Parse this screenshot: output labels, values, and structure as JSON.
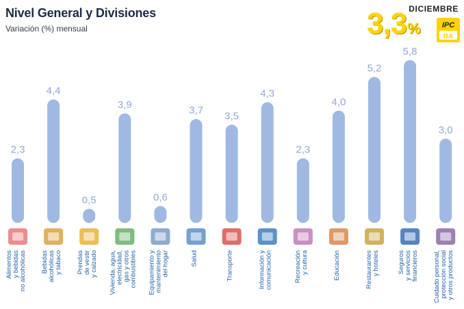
{
  "header": {
    "title": "Nivel General y Divisiones",
    "subtitle": "Variación (%) mensual",
    "month": "DICIEMBRE",
    "headline_value": "3,3",
    "headline_unit": "%",
    "logo_text_top": "IPC",
    "logo_text_bottom": "BA"
  },
  "colors": {
    "bar": "#9fb9e2",
    "value_label": "#8fa9d4",
    "category_label": "#1f5fa8",
    "headline": "#ffd400",
    "title": "#1d2b45"
  },
  "chart_data": {
    "type": "bar",
    "title": "Nivel General y Divisiones",
    "subtitle": "Variación (%) mensual",
    "categories": [
      [
        "Alimentos",
        "y bebidas",
        "no alcohólicas"
      ],
      [
        "Bebidas",
        "alcohólicas",
        "y tabaco"
      ],
      [
        "Prendas",
        "de vestir",
        "y calzado"
      ],
      [
        "Vivienda, agua,",
        "electricidad,",
        "gas y otros",
        "combustibles"
      ],
      [
        "Equipamiento y",
        "mantenimiento",
        "del hogar"
      ],
      [
        "Salud"
      ],
      [
        "Transporte"
      ],
      [
        "Información y",
        "comunicación"
      ],
      [
        "Recreación",
        "y cultura"
      ],
      [
        "Educación"
      ],
      [
        "Restaurantes",
        "y hoteles"
      ],
      [
        "Seguros",
        "y servicios",
        "financieros"
      ],
      [
        "Cuidado personal,",
        "protección social",
        "y otros productos"
      ]
    ],
    "values": [
      2.3,
      4.4,
      0.5,
      3.9,
      0.6,
      3.7,
      3.5,
      4.3,
      2.3,
      4.0,
      5.2,
      5.8,
      3.0
    ],
    "value_labels": [
      "2,3",
      "4,4",
      "0,5",
      "3,9",
      "0,6",
      "3,7",
      "3,5",
      "4,3",
      "2,3",
      "4,0",
      "5,2",
      "5,8",
      "3,0"
    ],
    "icons": [
      "food-icon",
      "beverage-icon",
      "clothing-icon",
      "housing-icon",
      "appliance-icon",
      "health-icon",
      "transport-icon",
      "communication-icon",
      "recreation-icon",
      "education-icon",
      "restaurant-icon",
      "finance-icon",
      "personal-care-icon"
    ],
    "xlabel": "",
    "ylabel": "",
    "ylim": [
      0,
      5.8
    ],
    "grid": false,
    "legend": "none"
  }
}
